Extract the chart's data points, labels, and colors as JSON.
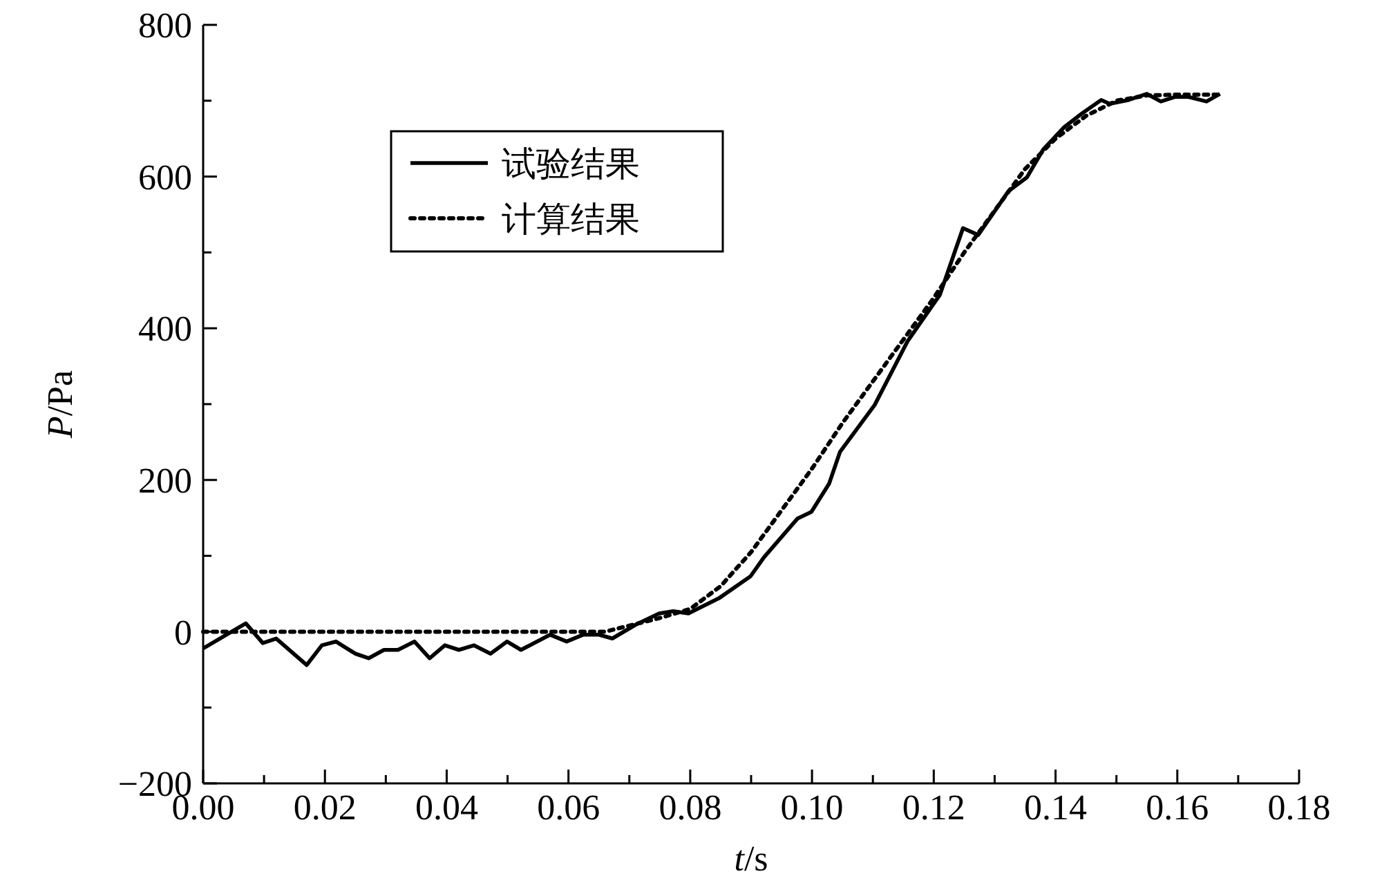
{
  "chart_data": {
    "type": "line",
    "xlabel": "t/s",
    "ylabel": "P/Pa",
    "xlim": [
      0,
      0.18
    ],
    "ylim": [
      -200,
      800
    ],
    "xticks": [
      {
        "value": 0,
        "label": "0.00"
      },
      {
        "value": 0.01,
        "label": null
      },
      {
        "value": 0.02,
        "label": "0.02"
      },
      {
        "value": 0.03,
        "label": null
      },
      {
        "value": 0.04,
        "label": "0.04"
      },
      {
        "value": 0.05,
        "label": null
      },
      {
        "value": 0.06,
        "label": "0.06"
      },
      {
        "value": 0.07,
        "label": null
      },
      {
        "value": 0.08,
        "label": "0.08"
      },
      {
        "value": 0.09,
        "label": null
      },
      {
        "value": 0.1,
        "label": "0.10"
      },
      {
        "value": 0.11,
        "label": null
      },
      {
        "value": 0.12,
        "label": "0.12"
      },
      {
        "value": 0.13,
        "label": null
      },
      {
        "value": 0.14,
        "label": "0.14"
      },
      {
        "value": 0.15,
        "label": null
      },
      {
        "value": 0.16,
        "label": "0.16"
      },
      {
        "value": 0.17,
        "label": null
      },
      {
        "value": 0.18,
        "label": "0.18"
      }
    ],
    "yticks": [
      {
        "value": -200,
        "label": "−200"
      },
      {
        "value": -100,
        "label": null
      },
      0,
      {
        "value": 100,
        "label": null
      },
      200,
      {
        "value": 300,
        "label": null
      },
      400,
      {
        "value": 500,
        "label": null
      },
      600,
      {
        "value": 700,
        "label": null
      },
      800
    ],
    "grid": false,
    "legend": "top left",
    "marker": "none",
    "series": [
      {
        "name": "试验结果",
        "color": "#000000",
        "line_style": "solid",
        "x": [
          0,
          0.007,
          0.0098,
          0.012,
          0.017,
          0.0195,
          0.0218,
          0.025,
          0.0272,
          0.0297,
          0.032,
          0.0347,
          0.0372,
          0.0397,
          0.042,
          0.0445,
          0.0472,
          0.0499,
          0.0522,
          0.057,
          0.0597,
          0.0624,
          0.065,
          0.0672,
          0.071,
          0.0749,
          0.0772,
          0.0797,
          0.0847,
          0.0899,
          0.0921,
          0.0976,
          0.0999,
          0.1028,
          0.1046,
          0.1103,
          0.1157,
          0.121,
          0.1248,
          0.1273,
          0.1323,
          0.1353,
          0.138,
          0.1414,
          0.1443,
          0.1475,
          0.1489,
          0.152,
          0.155,
          0.1573,
          0.1596,
          0.1618,
          0.1648,
          0.167
        ],
        "values": [
          -22,
          11,
          -15,
          -9,
          -44,
          -18,
          -13,
          -29,
          -35,
          -24,
          -24,
          -13,
          -35,
          -18,
          -24,
          -18,
          -29,
          -13,
          -24,
          -4,
          -13,
          -4,
          -4,
          -9,
          9,
          24,
          27,
          24,
          44,
          73,
          98,
          149,
          158,
          195,
          237,
          299,
          383,
          444,
          532,
          523,
          581,
          599,
          636,
          665,
          683,
          701,
          696,
          701,
          709,
          699,
          705,
          705,
          699,
          709
        ]
      },
      {
        "name": "计算结果",
        "color": "#000000",
        "line_style": "dotted",
        "x": [
          0,
          0.066,
          0.07,
          0.075,
          0.08,
          0.085,
          0.09,
          0.095,
          0.1,
          0.105,
          0.11,
          0.115,
          0.12,
          0.125,
          0.13,
          0.135,
          0.14,
          0.145,
          0.15,
          0.155,
          0.16,
          0.167
        ],
        "values": [
          0,
          0,
          8,
          18,
          30,
          60,
          105,
          160,
          215,
          275,
          330,
          385,
          440,
          500,
          555,
          610,
          650,
          680,
          700,
          707,
          708,
          708
        ]
      }
    ]
  }
}
